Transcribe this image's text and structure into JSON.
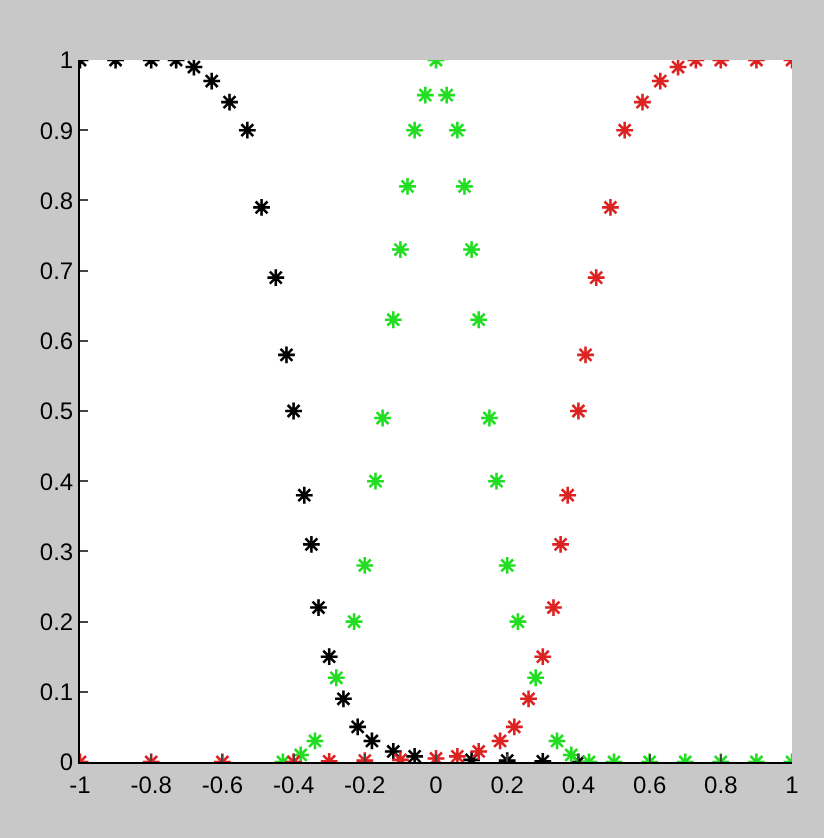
{
  "chart_data": {
    "type": "scatter",
    "marker": "cross",
    "xlim": [
      -1,
      1
    ],
    "xticks": [
      -1,
      -0.8,
      -0.6,
      -0.4,
      -0.2,
      0,
      0.2,
      0.4,
      0.6,
      0.8,
      1
    ],
    "ylim": [
      0,
      1
    ],
    "yticks": [
      0,
      0.1,
      0.2,
      0.3,
      0.4,
      0.5,
      0.6,
      0.7,
      0.8,
      0.9,
      1
    ],
    "series": [
      {
        "color": "#000000",
        "x": [
          -1,
          -0.9,
          -0.8,
          -0.73,
          -0.68,
          -0.63,
          -0.58,
          -0.53,
          -0.49,
          -0.45,
          -0.42,
          -0.4,
          -0.37,
          -0.35,
          -0.33,
          -0.3,
          -0.26,
          -0.22,
          -0.18,
          -0.12,
          -0.06,
          0,
          0.1,
          0.2,
          0.3,
          0.4
        ],
        "values": [
          1,
          1,
          1,
          1,
          0.99,
          0.97,
          0.94,
          0.9,
          0.79,
          0.69,
          0.58,
          0.5,
          0.38,
          0.31,
          0.22,
          0.15,
          0.09,
          0.05,
          0.03,
          0.015,
          0.008,
          null,
          0.003,
          0.002,
          0.001,
          0
        ]
      },
      {
        "color": "#22dd22",
        "x": [
          -0.43,
          -0.38,
          -0.34,
          -0.28,
          -0.23,
          -0.2,
          -0.17,
          -0.15,
          -0.12,
          -0.1,
          -0.08,
          -0.06,
          -0.03,
          0,
          0.03,
          0.06,
          0.08,
          0.1,
          0.12,
          0.15,
          0.17,
          0.2,
          0.23,
          0.28,
          0.34,
          0.38,
          0.43,
          0.5,
          0.6,
          0.7,
          0.8,
          0.9,
          1
        ],
        "values": [
          0,
          0.01,
          0.03,
          0.12,
          0.2,
          0.28,
          0.4,
          0.49,
          0.63,
          0.73,
          0.82,
          0.9,
          0.95,
          1,
          0.95,
          0.9,
          0.82,
          0.73,
          0.63,
          0.49,
          0.4,
          0.28,
          0.2,
          0.12,
          0.03,
          0.01,
          0,
          0,
          0,
          0,
          0,
          0,
          0
        ]
      },
      {
        "color": "#dd2222",
        "x": [
          -1,
          -0.8,
          -0.6,
          -0.4,
          -0.3,
          -0.2,
          -0.1,
          0,
          0.06,
          0.12,
          0.18,
          0.22,
          0.26,
          0.3,
          0.33,
          0.35,
          0.37,
          0.4,
          0.42,
          0.45,
          0.49,
          0.53,
          0.58,
          0.63,
          0.68,
          0.73,
          0.8,
          0.9,
          1
        ],
        "values": [
          0,
          0,
          0,
          0,
          0.001,
          0.002,
          0.003,
          0.005,
          0.008,
          0.015,
          0.03,
          0.05,
          0.09,
          0.15,
          0.22,
          0.31,
          0.38,
          0.5,
          0.58,
          0.69,
          0.79,
          0.9,
          0.94,
          0.97,
          0.99,
          1,
          1,
          1,
          1
        ]
      }
    ]
  }
}
